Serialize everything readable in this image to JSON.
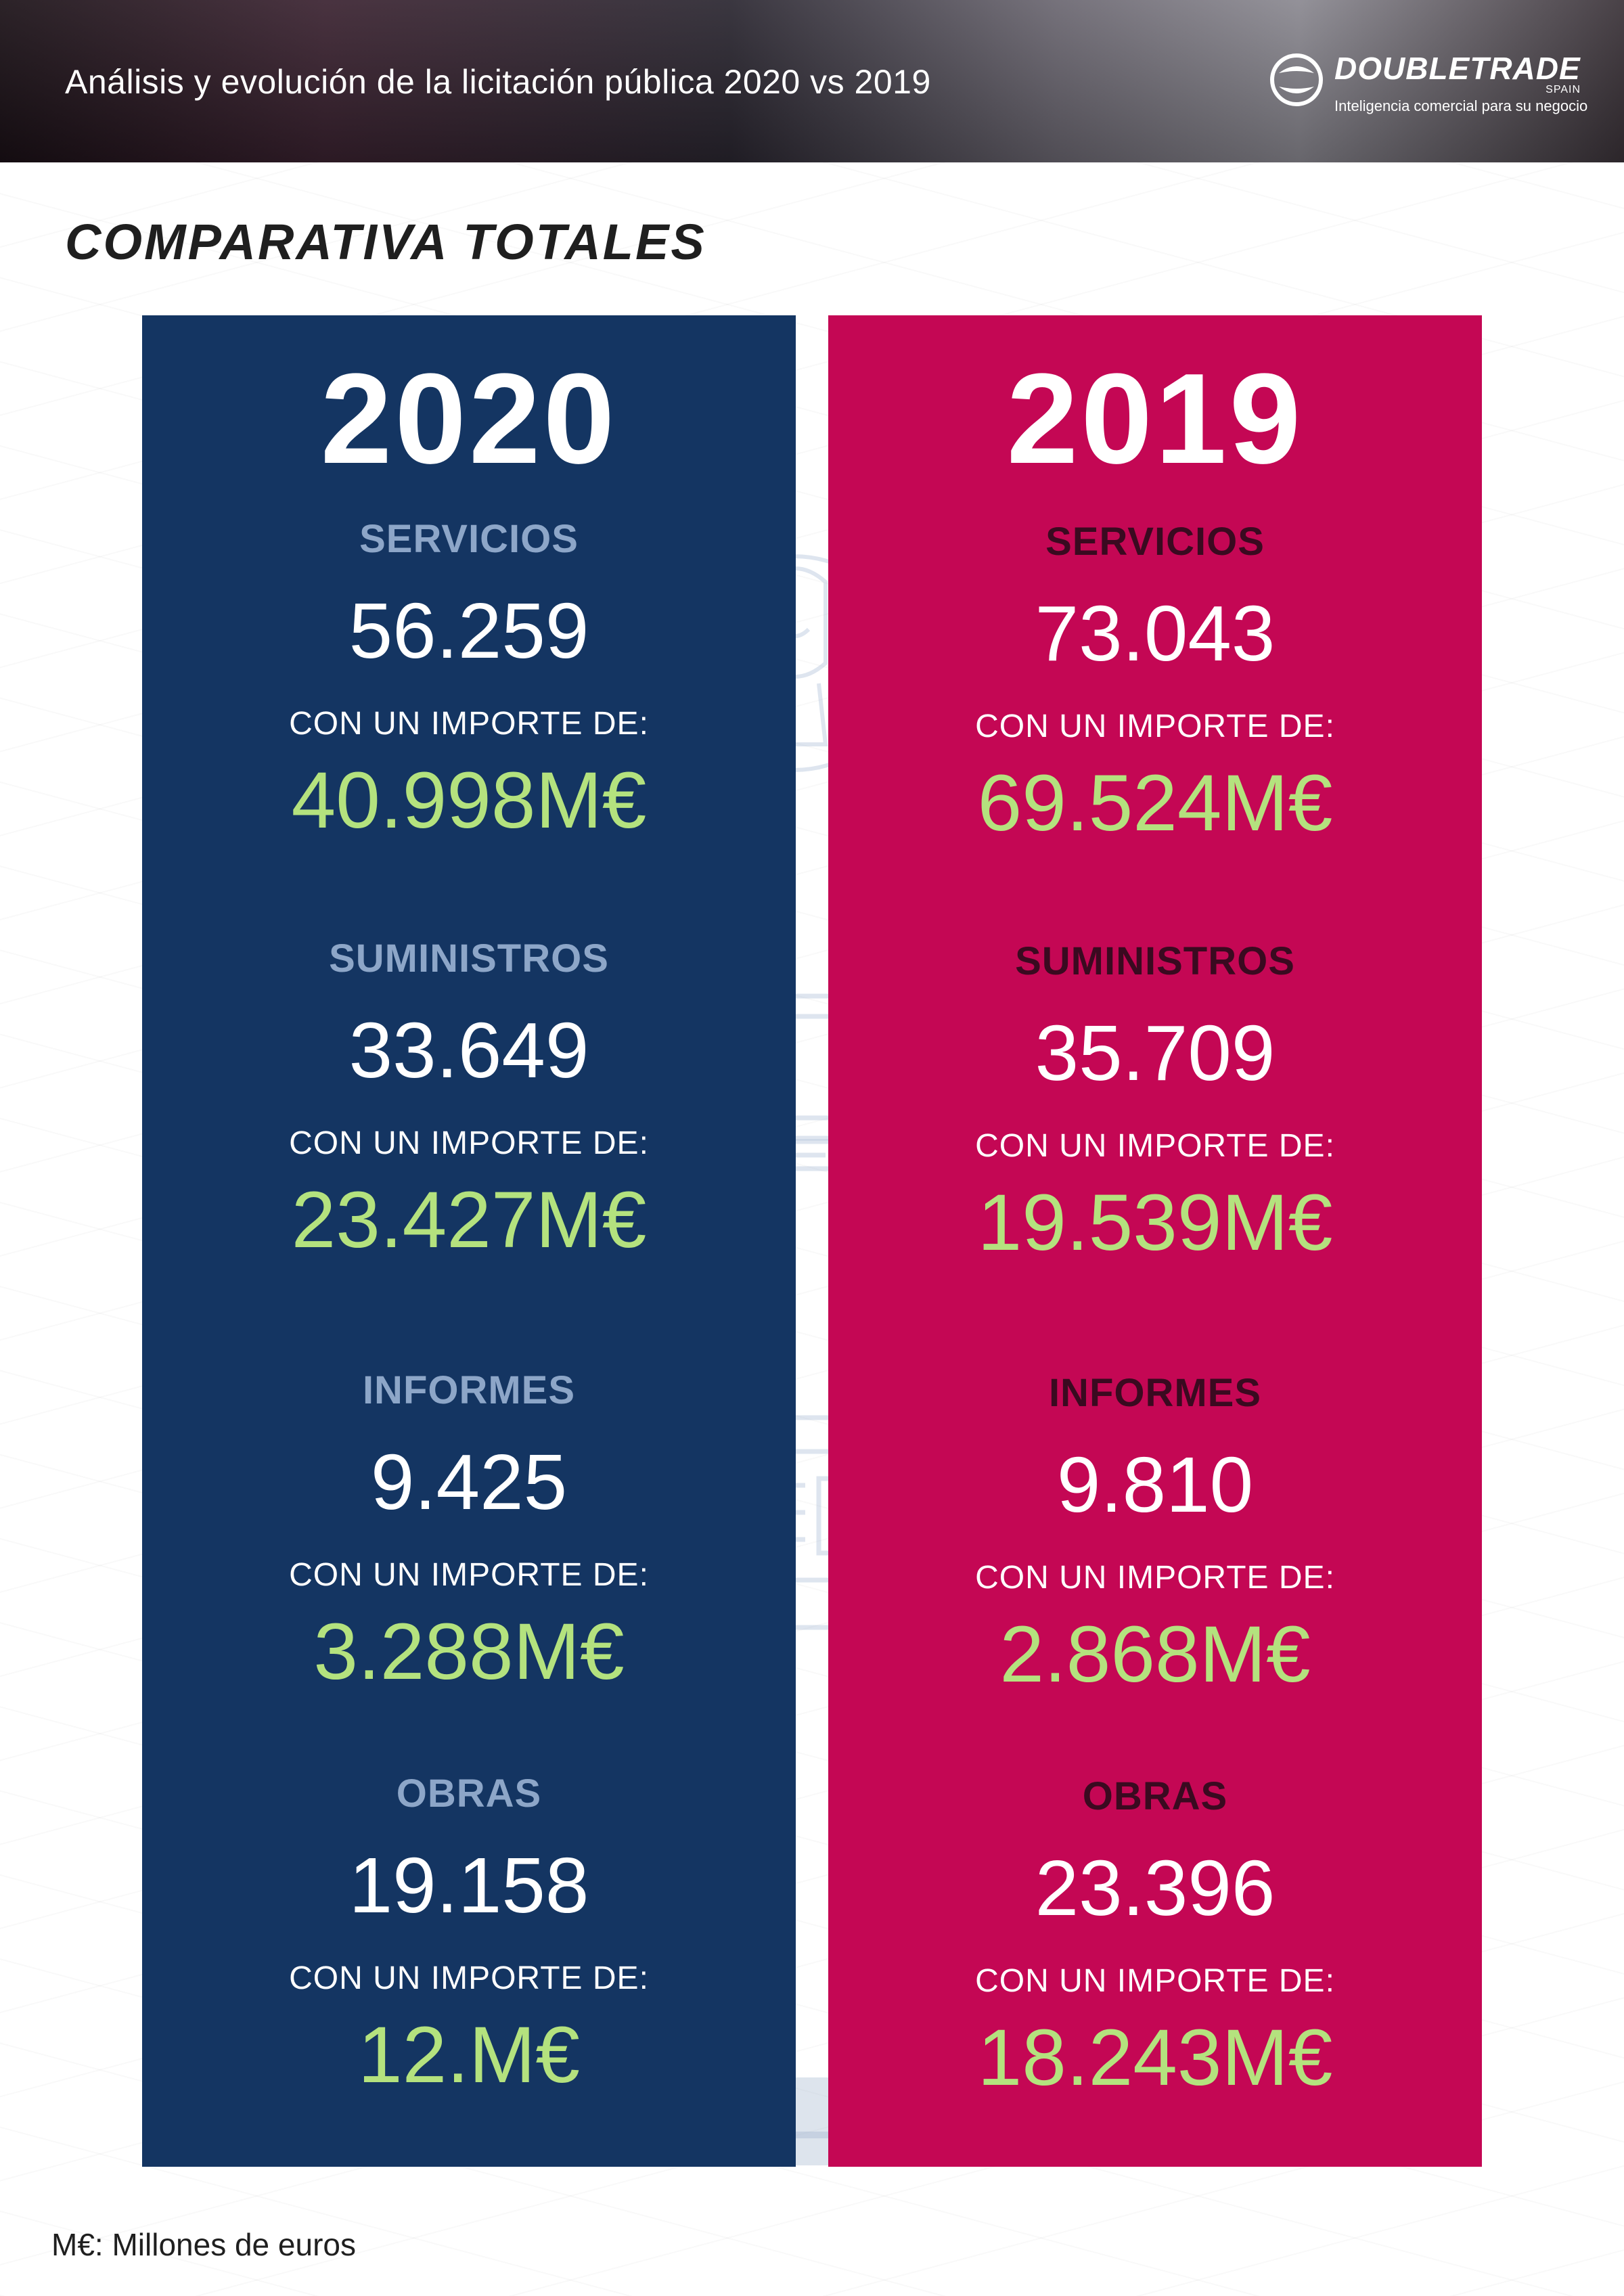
{
  "header": {
    "title": "Análisis y evolución de la licitación pública 2020 vs 2019",
    "logo": {
      "name": "DOUBLETRADE",
      "country": "SPAIN",
      "tagline": "Inteligencia comercial para  su negocio"
    }
  },
  "section_title": "COMPARATIVA TOTALES",
  "panels": [
    {
      "year": "2020",
      "color": "#143562",
      "categories": [
        {
          "label": "SERVICIOS",
          "count": "56.259",
          "prefix": "CON UN IMPORTE DE:",
          "amount": "40.998M€"
        },
        {
          "label": "SUMINISTROS",
          "count": "33.649",
          "prefix": "CON UN IMPORTE DE:",
          "amount": "23.427M€"
        },
        {
          "label": "INFORMES",
          "count": "9.425",
          "prefix": "CON UN IMPORTE DE:",
          "amount": "3.288M€"
        },
        {
          "label": "OBRAS",
          "count": "19.158",
          "prefix": "CON UN IMPORTE DE:",
          "amount": "12.M€"
        }
      ]
    },
    {
      "year": "2019",
      "color": "#c40754",
      "categories": [
        {
          "label": "SERVICIOS",
          "count": "73.043",
          "prefix": "CON UN IMPORTE DE:",
          "amount": "69.524M€"
        },
        {
          "label": "SUMINISTROS",
          "count": "35.709",
          "prefix": "CON UN IMPORTE DE:",
          "amount": "19.539M€"
        },
        {
          "label": "INFORMES",
          "count": "9.810",
          "prefix": "CON UN IMPORTE DE:",
          "amount": "2.868M€"
        },
        {
          "label": "OBRAS",
          "count": "23.396",
          "prefix": "CON UN IMPORTE DE:",
          "amount": "18.243M€"
        }
      ]
    }
  ],
  "footnote": "M€: Millones de euros",
  "colors": {
    "amount_green": "#b4e27e",
    "label_light_blue": "#8da6c8",
    "label_dark_maroon": "#3a0a20"
  },
  "icons": [
    "person-cycle-icon",
    "laptop-icon",
    "newspaper-icon",
    "excavator-icon"
  ]
}
